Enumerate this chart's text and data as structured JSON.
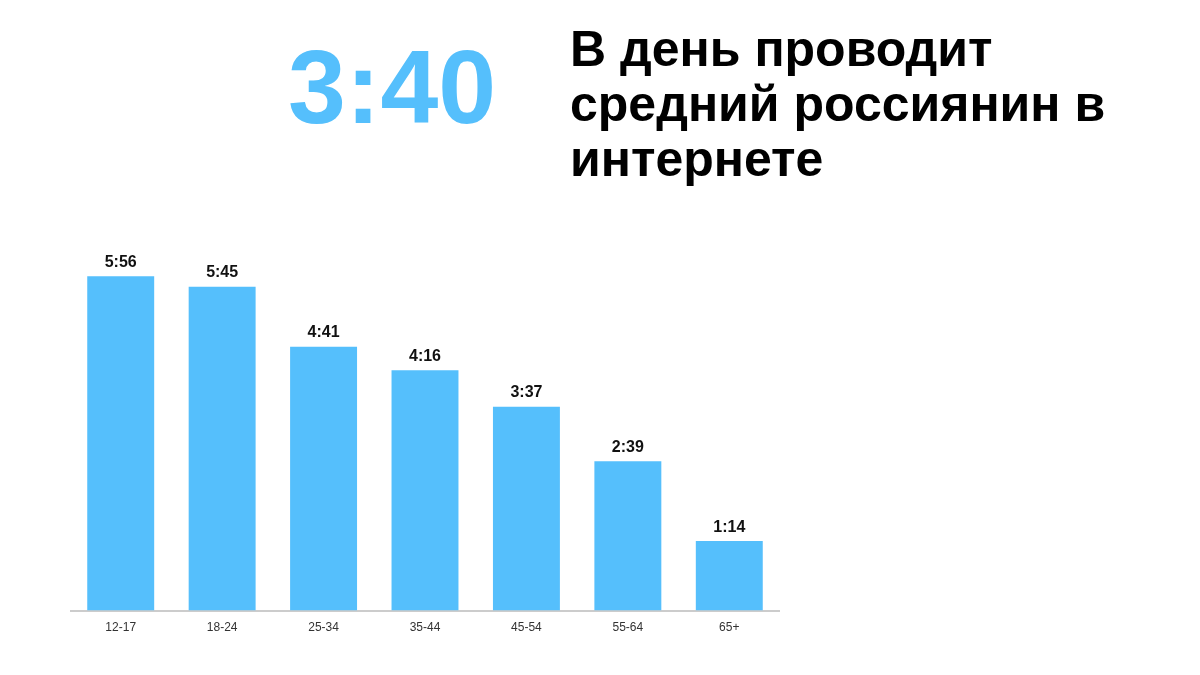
{
  "chart_data": {
    "type": "bar",
    "title": "В день проводит средний россиянин в интернете",
    "annotations": [
      "3:40"
    ],
    "categories": [
      "12-17",
      "18-24",
      "25-34",
      "35-44",
      "45-54",
      "55-64",
      "65+"
    ],
    "values": [
      356,
      345,
      281,
      256,
      217,
      159,
      74
    ],
    "value_labels": [
      "5:56",
      "5:45",
      "4:41",
      "4:16",
      "3:37",
      "2:39",
      "1:14"
    ],
    "color": "#55bffc",
    "grid": false,
    "legend": false
  }
}
